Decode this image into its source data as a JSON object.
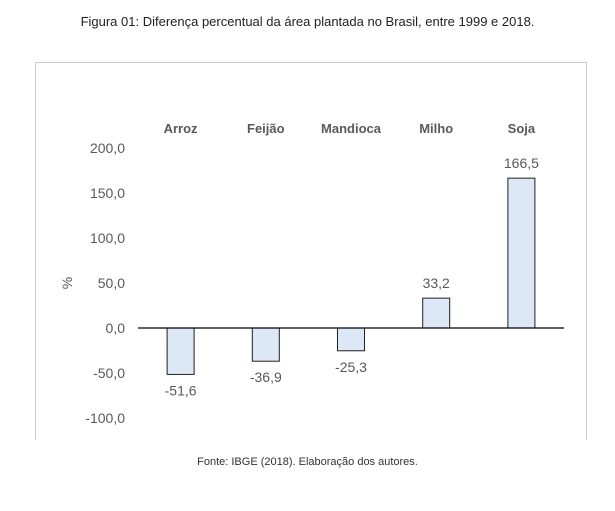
{
  "figure": {
    "title": "Figura 01: Diferença percentual da área plantada no Brasil, entre 1999 e 2018.",
    "source": "Fonte: IBGE (2018). Elaboração dos autores."
  },
  "chart_data": {
    "type": "bar",
    "categories": [
      "Arroz",
      "Feijão",
      "Mandioca",
      "Milho",
      "Soja"
    ],
    "values": [
      -51.6,
      -36.9,
      -25.3,
      33.2,
      166.5
    ],
    "value_labels": [
      "-51,6",
      "-36,9",
      "-25,3",
      "33,2",
      "166,5"
    ],
    "ylabel": "%",
    "ylim": [
      -100,
      200
    ],
    "yticks": [
      200,
      150,
      100,
      50,
      0,
      -50,
      -100
    ],
    "ytick_labels": [
      "200,0",
      "150,0",
      "100,0",
      "50,0",
      "0,0",
      "-50,0",
      "-100,0"
    ],
    "category_label_position": "top",
    "grid": false,
    "colors": {
      "bar_fill": "#dde8f6",
      "bar_stroke": "#1f1f1f",
      "axis": "#000000",
      "text": "#595959"
    }
  }
}
